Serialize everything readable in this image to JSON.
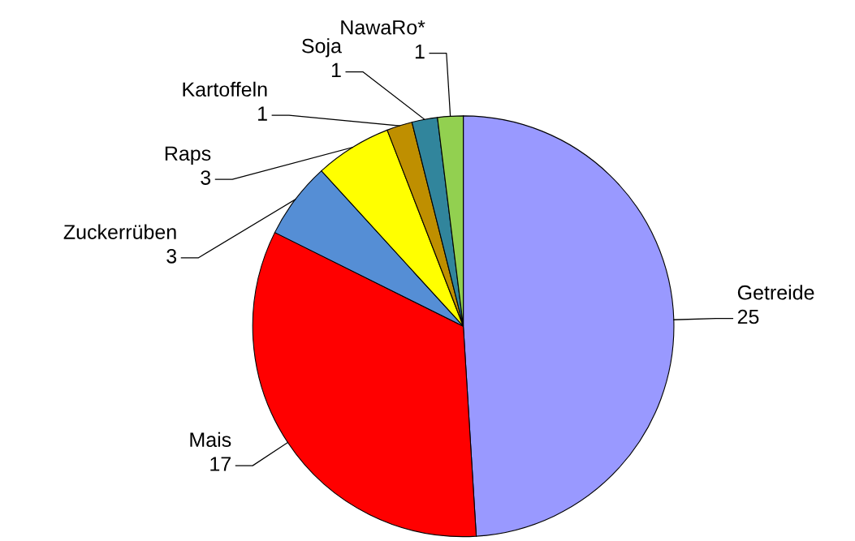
{
  "chart_data": {
    "type": "pie",
    "categories": [
      "Getreide",
      "Mais",
      "Zuckerrüben",
      "Raps",
      "Kartoffeln",
      "Soja",
      "NawaRo*"
    ],
    "values": [
      25,
      17,
      3,
      3,
      1,
      1,
      1
    ],
    "colors": [
      "#9999ff",
      "#ff0000",
      "#558ed5",
      "#ffff00",
      "#bf8f00",
      "#31859c",
      "#92d050"
    ],
    "data_labels": true
  }
}
